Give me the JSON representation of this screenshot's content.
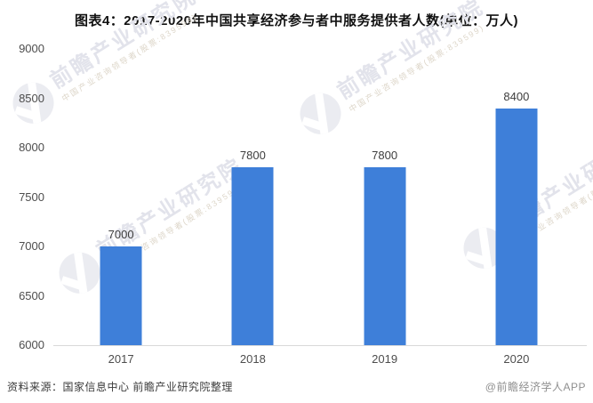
{
  "title": "图表4：2017-2020年中国共享经济参与者中服务提供者人数(单位：万人)",
  "chart_data": {
    "type": "bar",
    "title": "图表4：2017-2020年中国共享经济参与者中服务提供者人数(单位：万人)",
    "unit": "万人",
    "categories": [
      "2017",
      "2018",
      "2019",
      "2020"
    ],
    "values": [
      7000,
      7800,
      7800,
      8400
    ],
    "xlabel": "",
    "ylabel": "",
    "ylim": [
      6000,
      9000
    ],
    "yticks": [
      6000,
      6500,
      7000,
      7500,
      8000,
      8500,
      9000
    ],
    "grid": false,
    "legend": false,
    "bar_color": "#3E7FD9",
    "value_labels_shown": true
  },
  "footer": {
    "source": "资料来源：国家信息中心 前瞻产业研究院整理",
    "credit": "@前瞻经济学人APP"
  },
  "watermark": {
    "main": "前瞻产业研究院",
    "sub": "中国产业咨询领导者(股票:839599)",
    "logo": "qianzhan-logo-icon"
  },
  "colors": {
    "bar": "#3E7FD9",
    "axis_line": "#d9d9d9",
    "tick_label": "#4d4d4d",
    "value_label": "#3d3d3d",
    "title": "#111111",
    "watermark_main": "#e2e3eb",
    "watermark_sub": "#ddd6c9"
  }
}
